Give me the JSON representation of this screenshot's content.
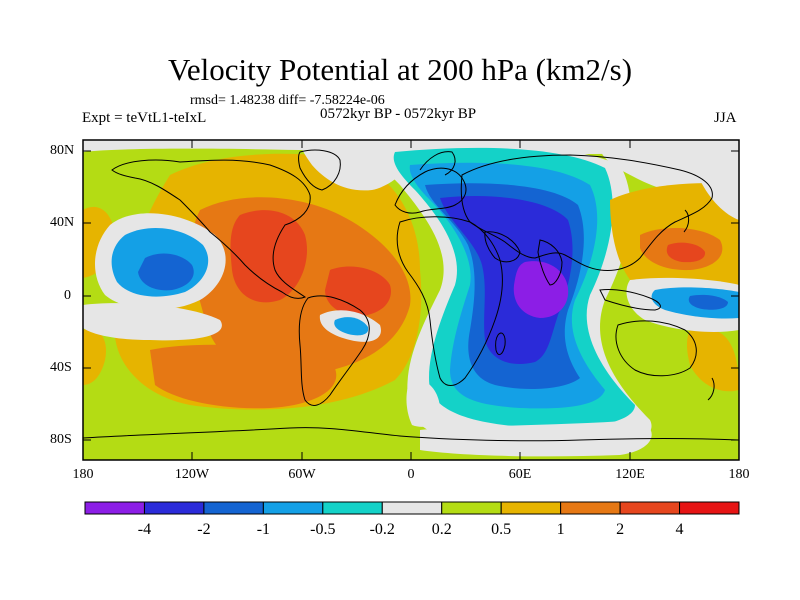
{
  "title": "Velocity Potential at 200 hPa (km2/s)",
  "stats": "rmsd= 1.48238 diff= -7.58224e-06",
  "left_label": "Expt = teVtL1-teIxL",
  "center_label": "0572kyr BP - 0572kyr BP",
  "right_label": "JJA",
  "map": {
    "projection": "equirectangular",
    "lon_range": [
      -180,
      180
    ],
    "lat_range": [
      -90,
      90
    ],
    "lat_tick_labels": [
      "80N",
      "40N",
      "0",
      "40S",
      "80S"
    ],
    "lon_tick_labels": [
      "180",
      "120W",
      "60W",
      "0",
      "60E",
      "120E",
      "180"
    ]
  },
  "colorbar": {
    "tick_labels": [
      "-4",
      "-2",
      "-1",
      "-0.5",
      "-0.2",
      "0.2",
      "0.5",
      "1",
      "2",
      "4"
    ],
    "colors": [
      "#8c1ee6",
      "#2b2bd9",
      "#1464d2",
      "#14a0e6",
      "#14d2c8",
      "#e6e6e6",
      "#b4dc14",
      "#e6b400",
      "#e67814",
      "#e6461e",
      "#e61414"
    ]
  }
}
